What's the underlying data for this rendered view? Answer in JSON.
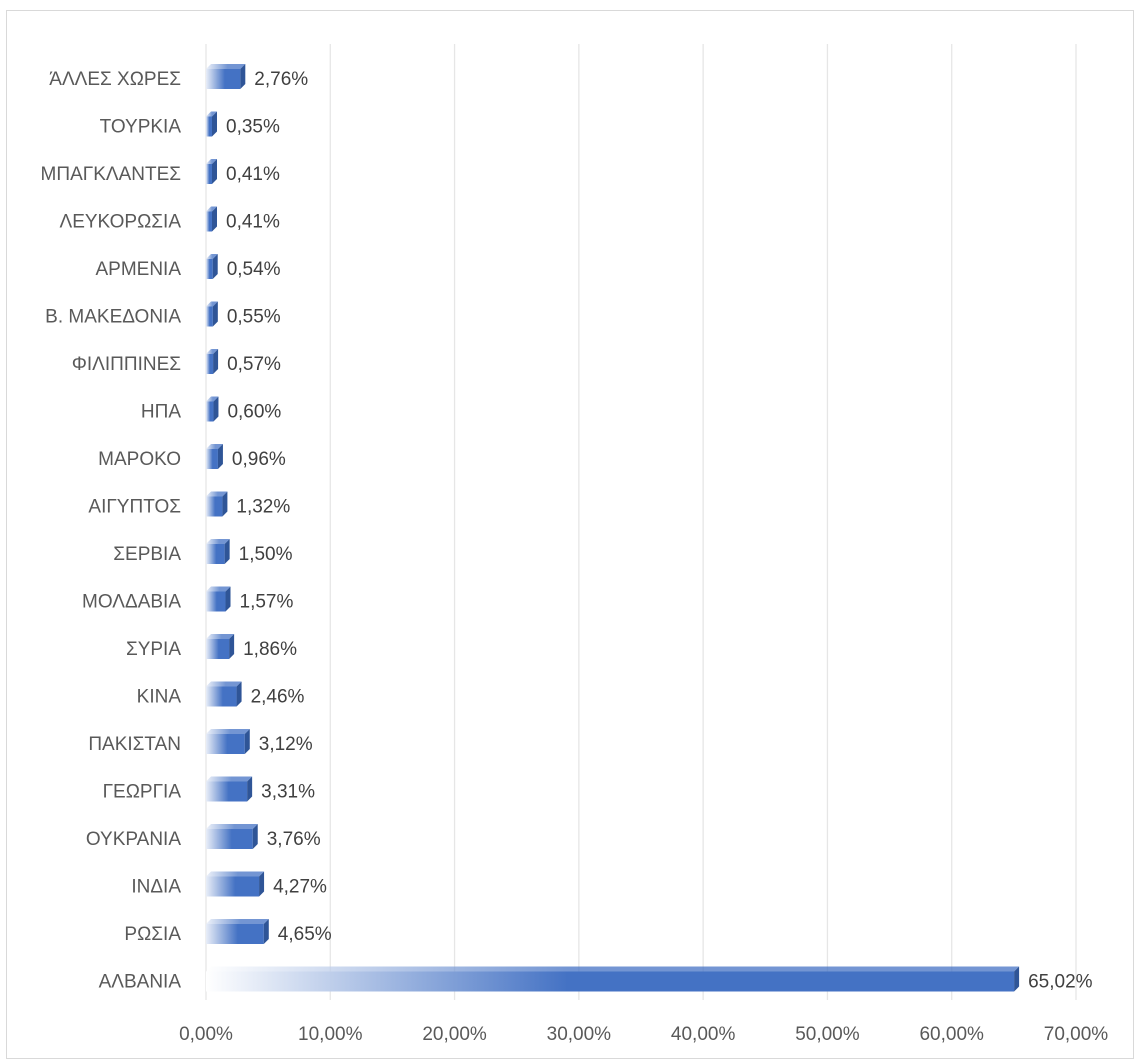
{
  "chart_data": {
    "type": "bar",
    "orientation": "horizontal",
    "style": "3d-gradient",
    "categories": [
      "ΆΛΛΕΣ ΧΩΡΕΣ",
      "ΤΟΥΡΚΙΑ",
      "ΜΠΑΓΚΛΑΝΤΕΣ",
      "ΛΕΥΚΟΡΩΣΙΑ",
      "ΑΡΜΕΝΙΑ",
      "Β. ΜΑΚΕΔΟΝΙΑ",
      "ΦΙΛΙΠΠΙΝΕΣ",
      "ΗΠΑ",
      "ΜΑΡΟΚΟ",
      "ΑΙΓΥΠΤΟΣ",
      "ΣΕΡΒΙΑ",
      "ΜΟΛΔΑΒΙΑ",
      "ΣΥΡΙΑ",
      "ΚΙΝΑ",
      "ΠΑΚΙΣΤΑΝ",
      "ΓΕΩΡΓΙΑ",
      "ΟΥΚΡΑΝΙΑ",
      "ΙΝΔΙΑ",
      "ΡΩΣΙΑ",
      "ΑΛΒΑΝΙΑ"
    ],
    "values": [
      2.76,
      0.35,
      0.41,
      0.41,
      0.54,
      0.55,
      0.57,
      0.6,
      0.96,
      1.32,
      1.5,
      1.57,
      1.86,
      2.46,
      3.12,
      3.31,
      3.76,
      4.27,
      4.65,
      65.02
    ],
    "value_labels": [
      "2,76%",
      "0,35%",
      "0,41%",
      "0,41%",
      "0,54%",
      "0,55%",
      "0,57%",
      "0,60%",
      "0,96%",
      "1,32%",
      "1,50%",
      "1,57%",
      "1,86%",
      "2,46%",
      "3,12%",
      "3,31%",
      "3,76%",
      "4,27%",
      "4,65%",
      "65,02%"
    ],
    "xlim": [
      0,
      70
    ],
    "x_ticks": [
      0,
      10,
      20,
      30,
      40,
      50,
      60,
      70
    ],
    "x_tick_labels": [
      "0,00%",
      "10,00%",
      "20,00%",
      "30,00%",
      "40,00%",
      "50,00%",
      "60,00%",
      "70,00%"
    ],
    "grid": "vertical",
    "legend": "none",
    "colors": {
      "bar": "#4472c4",
      "bar_dark": "#2f5597",
      "bar_light": "#e9eef8",
      "grid": "#e6e6e6"
    }
  }
}
